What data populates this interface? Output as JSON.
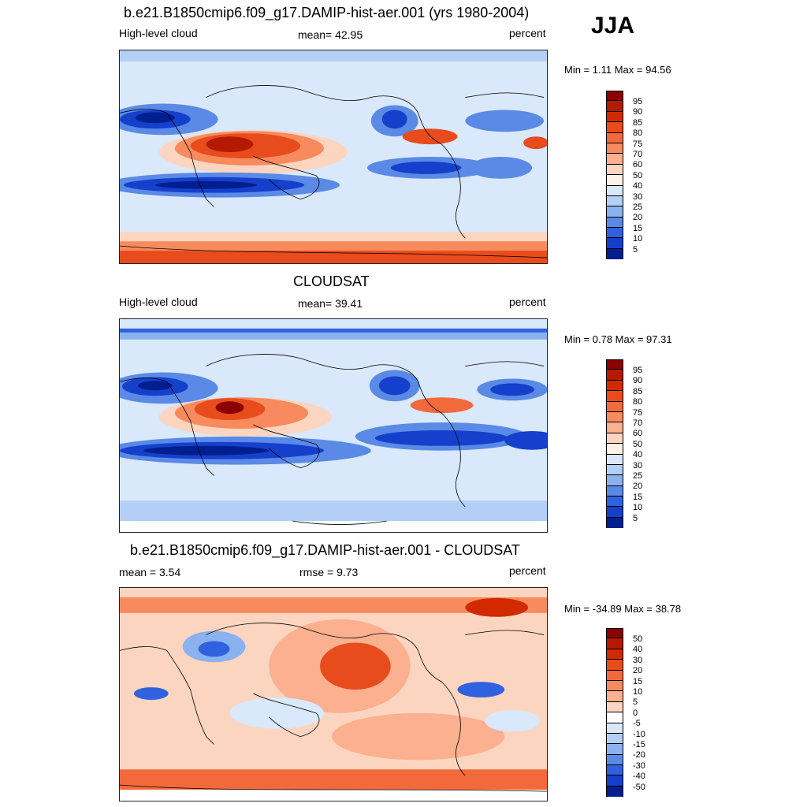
{
  "season": "JJA",
  "panels": [
    {
      "title": "b.e21.B1850cmip6.f09_g17.DAMIP-hist-aer.001 (yrs 1980-2004)",
      "left_label": "High-level cloud",
      "center_label": "mean=  42.95",
      "units": "percent",
      "minmax": "Min =   1.11 Max =  94.56",
      "colorbar_labels": [
        "95",
        "90",
        "85",
        "80",
        "75",
        "70",
        "60",
        "50",
        "40",
        "30",
        "25",
        "20",
        "15",
        "10",
        "5"
      ],
      "colorbar_colors": [
        "#8b0000",
        "#b31a00",
        "#d12a00",
        "#e84c1c",
        "#f26a3c",
        "#f78b5e",
        "#fbb08f",
        "#fcd5c0",
        "#fdf0e6",
        "#d9e8fb",
        "#b3cff5",
        "#8ab2ee",
        "#5a8ae6",
        "#3062df",
        "#1540cc",
        "#001f8f"
      ]
    },
    {
      "title": "CLOUDSAT",
      "left_label": "High-level cloud",
      "center_label": "mean=  39.41",
      "units": "percent",
      "minmax": "Min =   0.78 Max =  97.31",
      "colorbar_labels": [
        "95",
        "90",
        "85",
        "80",
        "75",
        "70",
        "60",
        "50",
        "40",
        "30",
        "25",
        "20",
        "15",
        "10",
        "5"
      ],
      "colorbar_colors": [
        "#8b0000",
        "#b31a00",
        "#d12a00",
        "#e84c1c",
        "#f26a3c",
        "#f78b5e",
        "#fbb08f",
        "#fcd5c0",
        "#fdf0e6",
        "#d9e8fb",
        "#b3cff5",
        "#8ab2ee",
        "#5a8ae6",
        "#3062df",
        "#1540cc",
        "#001f8f"
      ]
    },
    {
      "title": "b.e21.B1850cmip6.f09_g17.DAMIP-hist-aer.001 - CLOUDSAT",
      "left_label": "mean =   3.54",
      "center_label": "rmse =   9.73",
      "units": "percent",
      "minmax": "Min = -34.89 Max =  38.78",
      "colorbar_labels": [
        "50",
        "40",
        "30",
        "20",
        "15",
        "10",
        "5",
        "0",
        "-5",
        "-10",
        "-15",
        "-20",
        "-30",
        "-40",
        "-50"
      ],
      "colorbar_colors": [
        "#8b0000",
        "#b31a00",
        "#d12a00",
        "#e84c1c",
        "#f26a3c",
        "#f78b5e",
        "#fbb08f",
        "#fcd5c0",
        "#ffffff",
        "#d9e8fb",
        "#b3cff5",
        "#8ab2ee",
        "#5a8ae6",
        "#3062df",
        "#1540cc",
        "#001f8f"
      ]
    }
  ]
}
